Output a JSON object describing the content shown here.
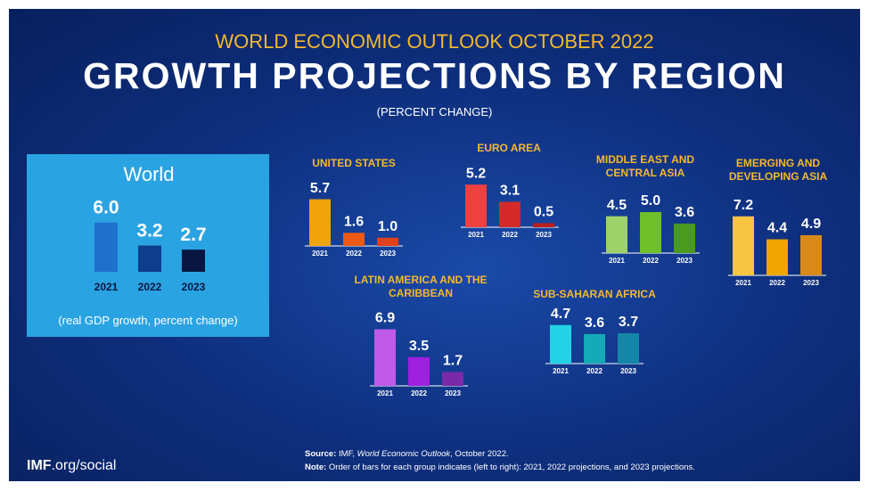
{
  "header": {
    "kicker": "WORLD ECONOMIC OUTLOOK OCTOBER 2022",
    "title": "GROWTH PROJECTIONS BY REGION",
    "unit": "(PERCENT CHANGE)"
  },
  "chart_data": [
    {
      "type": "bar",
      "title": "World",
      "subtitle": "(real GDP growth, percent change)",
      "categories": [
        "2021",
        "2022",
        "2023"
      ],
      "values": [
        6.0,
        3.2,
        2.7
      ],
      "value_labels": [
        "6.0",
        "3.2",
        "2.7"
      ],
      "colors": [
        "#1f6fcc",
        "#0e3d8c",
        "#0a1642"
      ]
    },
    {
      "type": "bar",
      "title": "UNITED STATES",
      "categories": [
        "2021",
        "2022",
        "2023"
      ],
      "values": [
        5.7,
        1.6,
        1.0
      ],
      "value_labels": [
        "5.7",
        "1.6",
        "1.0"
      ],
      "colors": [
        "#f0a30a",
        "#ec5a16",
        "#e0401b"
      ]
    },
    {
      "type": "bar",
      "title": "EURO AREA",
      "categories": [
        "2021",
        "2022",
        "2023"
      ],
      "values": [
        5.2,
        3.1,
        0.5
      ],
      "colors": [
        "#ef4040",
        "#d42a2a",
        "#b81e1e"
      ]
    },
    {
      "type": "bar",
      "title": "MIDDLE EAST AND CENTRAL ASIA",
      "categories": [
        "2021",
        "2022",
        "2023"
      ],
      "values": [
        4.5,
        5.0,
        3.6
      ],
      "value_labels": [
        "4.5",
        "5.0",
        "3.6"
      ],
      "colors": [
        "#9ed16a",
        "#6fbf2a",
        "#4a9a1e"
      ]
    },
    {
      "type": "bar",
      "title": "EMERGING AND DEVELOPING ASIA",
      "categories": [
        "2021",
        "2022",
        "2023"
      ],
      "values": [
        7.2,
        4.4,
        4.9
      ],
      "colors": [
        "#f7c542",
        "#f0a500",
        "#d9891a"
      ]
    },
    {
      "type": "bar",
      "title": "LATIN AMERICA AND THE CARIBBEAN",
      "categories": [
        "2021",
        "2022",
        "2023"
      ],
      "values": [
        6.9,
        3.5,
        1.7
      ],
      "colors": [
        "#c05ae8",
        "#a020e0",
        "#7a2aa8"
      ]
    },
    {
      "type": "bar",
      "title": "SUB-SAHARAN AFRICA",
      "categories": [
        "2021",
        "2022",
        "2023"
      ],
      "values": [
        4.7,
        3.6,
        3.7
      ],
      "colors": [
        "#22d3e6",
        "#14aab8",
        "#1586a8"
      ]
    }
  ],
  "footer": {
    "logo_bold": "IMF",
    "logo_rest": ".org/social",
    "source_label": "Source:",
    "source_prefix": " IMF, ",
    "source_title": "World Economic Outlook",
    "source_suffix": ", October 2022.",
    "note_label": "Note:",
    "note_text": " Order of bars for each group indicates (left to right): 2021, 2022 projections, and 2023 projections."
  }
}
